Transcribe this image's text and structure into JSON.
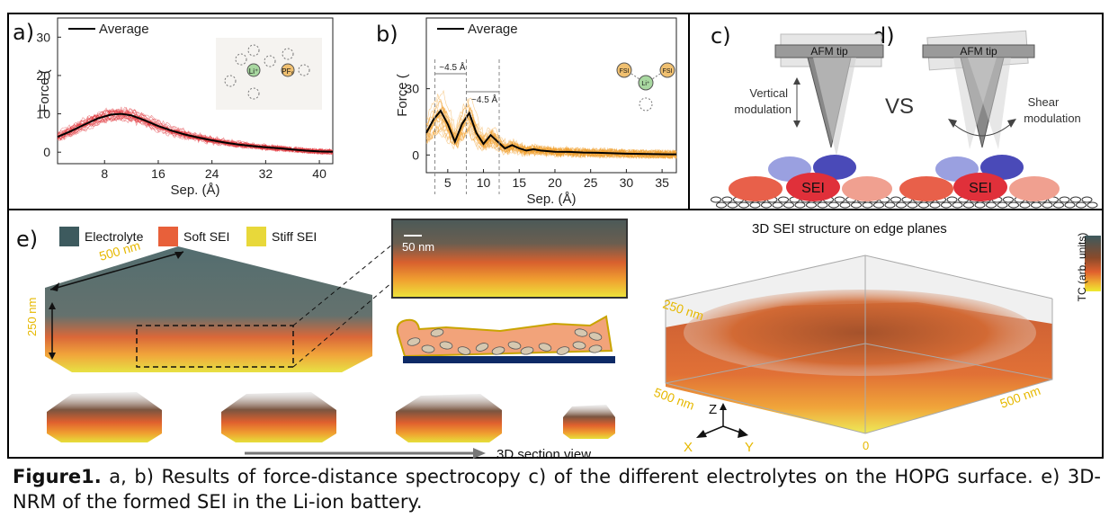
{
  "figure": {
    "panel_labels": [
      "a)",
      "b)",
      "c)",
      "d)",
      "e)"
    ],
    "caption_bold": "Figure1.",
    "caption_text": " a, b) Results of force-distance spectrocopy c) of the different electrolytes on the HOPG surface. e) 3D-NRM of the formed SEI in the Li-ion battery."
  },
  "panel_a": {
    "legend": "Average",
    "ylabel": "Force (",
    "xlabel": "Sep. (Å)",
    "inset_labels": [
      "Li⁺",
      "PF₆"
    ],
    "colors": {
      "traces": "#e0353b",
      "average": "#000000"
    }
  },
  "panel_b": {
    "legend": "Average",
    "ylabel": "Force (",
    "xlabel": "Sep. (Å)",
    "annotation_1": "~4.5 Å",
    "annotation_2": "~4.5 Å",
    "inset_labels": [
      "FSI",
      "Li⁺",
      "FSI"
    ],
    "colors": {
      "traces": "#f0a030",
      "average": "#000000"
    }
  },
  "panel_c": {
    "tip_label": "AFM tip",
    "modulation_label_line1": "Vertical",
    "modulation_label_line2": "modulation",
    "sei_label": "SEI"
  },
  "panel_d": {
    "tip_label": "AFM tip",
    "modulation_label_line1": "Shear",
    "modulation_label_line2": "modulation",
    "sei_label": "SEI",
    "vs_label": "VS"
  },
  "panel_e": {
    "legend": [
      {
        "label": "Electrolyte",
        "color": "#3d5a5e"
      },
      {
        "label": "Soft SEI",
        "color": "#e8603a"
      },
      {
        "label": "Stiff SEI",
        "color": "#e8d83a"
      }
    ],
    "dim_width": "500 nm",
    "dim_height": "250 nm",
    "scalebar": "50 nm",
    "section_label": "3D section view",
    "title_3d": "3D SEI structure on edge planes",
    "colorbar_label": "TC (arb. units)",
    "axis_250": "250 nm",
    "axis_500_left": "500 nm",
    "axis_500_right": "500 nm",
    "axis_zero": "0",
    "axes_xyz": [
      "Z",
      "X",
      "Y"
    ]
  },
  "chart_data": [
    {
      "type": "line",
      "panel": "a",
      "xlabel": "Sep. (Å)",
      "ylabel": "Force (",
      "xlim": [
        1,
        42
      ],
      "ylim": [
        -3,
        35
      ],
      "xticks": [
        8,
        16,
        24,
        32,
        40
      ],
      "yticks": [
        0,
        10,
        20,
        30
      ],
      "series": [
        {
          "name": "Average",
          "x": [
            1,
            3,
            5,
            7,
            9,
            10.5,
            12,
            14,
            16,
            18,
            20,
            22,
            24,
            26,
            28,
            30,
            32,
            34,
            36,
            38,
            40,
            42
          ],
          "y": [
            4,
            5.5,
            7.2,
            8.8,
            9.8,
            10,
            9.6,
            8.3,
            6.8,
            5.6,
            4.6,
            3.8,
            3.1,
            2.5,
            2.0,
            1.6,
            1.3,
            1.0,
            0.7,
            0.4,
            0.2,
            0.1
          ]
        }
      ]
    },
    {
      "type": "line",
      "panel": "b",
      "xlabel": "Sep. (Å)",
      "ylabel": "Force (",
      "xlim": [
        2,
        37
      ],
      "ylim": [
        -8,
        62
      ],
      "xticks": [
        5,
        10,
        15,
        20,
        25,
        30,
        35
      ],
      "yticks": [
        0,
        30
      ],
      "series": [
        {
          "name": "Average",
          "x": [
            2,
            3,
            4,
            5,
            6,
            7,
            8,
            9,
            10,
            11,
            12,
            13,
            14,
            15,
            16,
            17,
            18,
            20,
            22,
            24,
            26,
            28,
            30,
            32,
            34,
            36,
            37
          ],
          "y": [
            10,
            16,
            20,
            14,
            6,
            14,
            19,
            10,
            5,
            9,
            6,
            3,
            4.5,
            3,
            2,
            2.6,
            2,
            1.5,
            1.4,
            1.1,
            1,
            0.8,
            0.6,
            0.5,
            0.4,
            0.3,
            0.3
          ]
        }
      ]
    }
  ]
}
